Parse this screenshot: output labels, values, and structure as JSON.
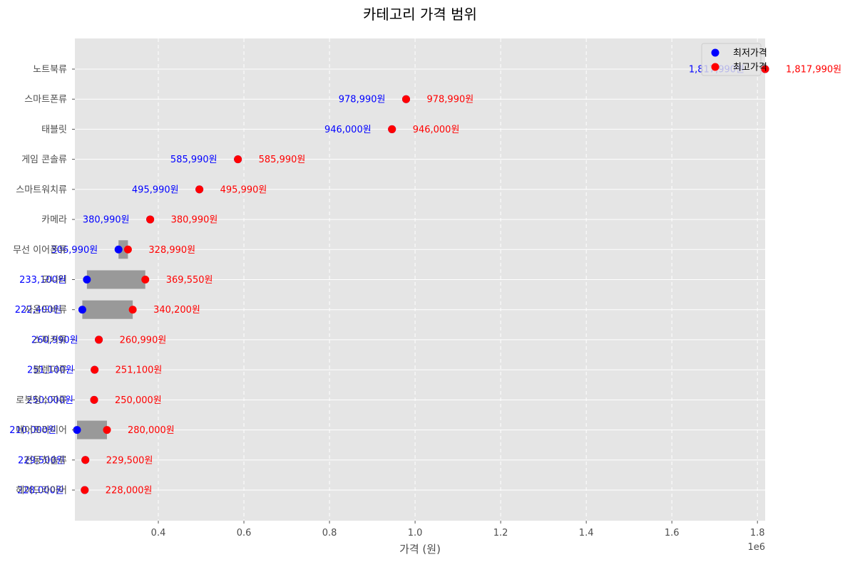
{
  "chart_data": {
    "type": "scatter",
    "title": "카테고리 가격 범위",
    "xlabel": "가격 (원)",
    "ylabel": "",
    "x_offset_label": "1e6",
    "xlim": [
      205000,
      1818000
    ],
    "xticks": [
      400000,
      600000,
      800000,
      1000000,
      1200000,
      1400000,
      1600000,
      1800000
    ],
    "xtick_labels": [
      "0.4",
      "0.6",
      "0.8",
      "1.0",
      "1.2",
      "1.4",
      "1.6",
      "1.8"
    ],
    "grid": true,
    "legend_position": "top-right",
    "price_suffix": "원",
    "series": [
      {
        "name": "최저가격",
        "color": "#0000ff"
      },
      {
        "name": "최고가격",
        "color": "#ff0000"
      }
    ],
    "range_bar_color": "#999999",
    "categories": [
      "노트북류",
      "스마트폰류",
      "태블릿",
      "게임 콘솔류",
      "스마트워치류",
      "카메라",
      "무선 이어폰류",
      "모니터",
      "사운드바류",
      "스피커류",
      "블렌더류",
      "로봇청소기류",
      "에어프라이어",
      "전동칫솔류",
      "헤어드라이어"
    ],
    "min": [
      1817990,
      978990,
      946000,
      585990,
      495990,
      380990,
      306990,
      233100,
      222400,
      260990,
      251100,
      250000,
      210000,
      229500,
      228000
    ],
    "max": [
      1817990,
      978990,
      946000,
      585990,
      495990,
      380990,
      328990,
      369550,
      340200,
      260990,
      251100,
      250000,
      280000,
      229500,
      228000
    ]
  }
}
